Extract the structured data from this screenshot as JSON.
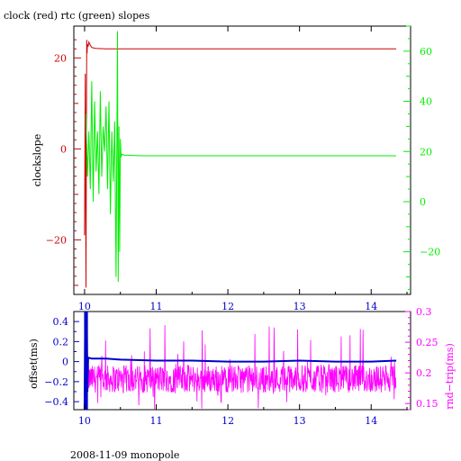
{
  "title": "clock (red) rtc (green) slopes",
  "footer": "2008-11-09 monopole",
  "colors": {
    "clock": "#cc0000",
    "rtc": "#00ee00",
    "offset": "#0000cc",
    "rndtrip": "#ff00ff",
    "axis_black": "#000000"
  },
  "chart_data": [
    {
      "type": "line",
      "title": "clock (red) rtc (green) slopes",
      "xlabel": "",
      "ylabel": "clockslope",
      "xlim": [
        9.85,
        14.55
      ],
      "x_ticks": [
        "10",
        "11",
        "12",
        "13",
        "14"
      ],
      "ylim_left": [
        -32,
        27
      ],
      "y_left_ticks": [
        "20",
        "0",
        "−20"
      ],
      "ylim_right": [
        -37,
        70
      ],
      "y_right_ticks": [
        "60",
        "40",
        "20",
        "0",
        "−20"
      ],
      "series": [
        {
          "name": "clock",
          "axis": "left",
          "x": [
            10.0,
            10.01,
            10.02,
            10.03,
            10.035,
            10.04,
            10.05,
            10.06,
            10.08,
            10.1,
            10.15,
            10.3,
            10.5,
            11.0,
            12.0,
            13.0,
            14.0,
            14.35
          ],
          "y": [
            -19.0,
            16.5,
            -30.5,
            24.0,
            21.0,
            23.0,
            22.5,
            23.5,
            22.8,
            22.3,
            22.1,
            22.0,
            22.0,
            22.0,
            22.0,
            22.0,
            22.0,
            22.0
          ]
        },
        {
          "name": "rtc",
          "axis": "right",
          "x": [
            10.02,
            10.04,
            10.06,
            10.08,
            10.1,
            10.12,
            10.14,
            10.16,
            10.18,
            10.2,
            10.22,
            10.24,
            10.26,
            10.28,
            10.3,
            10.32,
            10.34,
            10.36,
            10.38,
            10.4,
            10.42,
            10.44,
            10.46,
            10.47,
            10.48,
            10.49,
            10.5,
            10.51,
            10.53,
            10.55,
            10.6,
            10.8,
            11.0,
            12.0,
            13.0,
            14.0,
            14.35
          ],
          "y": [
            35.0,
            10.0,
            28.0,
            5.0,
            48.0,
            0.0,
            40.0,
            12.0,
            28.0,
            3.0,
            44.0,
            10.0,
            30.0,
            20.0,
            38.0,
            5.0,
            40.0,
            -5.0,
            28.0,
            8.0,
            32.0,
            -30.0,
            68.0,
            -32.0,
            30.0,
            -20.0,
            25.0,
            18.0,
            19.0,
            18.5,
            18.5,
            18.3,
            18.3,
            18.3,
            18.3,
            18.3,
            18.3
          ]
        }
      ]
    },
    {
      "type": "line",
      "title": "",
      "xlabel": "",
      "ylabel_left": "offset(ms)",
      "ylabel_right": "rnd−trip(ms)",
      "xlim": [
        9.85,
        14.55
      ],
      "x_ticks": [
        "10",
        "11",
        "12",
        "13",
        "14"
      ],
      "ylim_left": [
        -0.48,
        0.5
      ],
      "y_left_ticks": [
        "0.4",
        "0.2",
        "0",
        "−0.2",
        "−0.4"
      ],
      "ylim_right": [
        0.14,
        0.3
      ],
      "y_right_ticks": [
        "0.3",
        "0.25",
        "0.2",
        "0.15"
      ],
      "series": [
        {
          "name": "offset",
          "axis": "left",
          "x": [
            10.0,
            10.01,
            10.02,
            10.03,
            10.04,
            10.05,
            10.1,
            10.3,
            10.5,
            11.0,
            11.5,
            12.0,
            12.5,
            13.0,
            13.5,
            14.0,
            14.35
          ],
          "y": [
            -0.48,
            0.5,
            -0.48,
            0.5,
            -0.3,
            0.04,
            0.03,
            0.03,
            0.02,
            0.01,
            0.01,
            0.0,
            0.0,
            0.01,
            0.0,
            0.0,
            0.01
          ]
        },
        {
          "name": "rndtrip",
          "axis": "right",
          "x": [
            10.05,
            10.5,
            11.0,
            11.5,
            12.0,
            12.5,
            13.0,
            13.5,
            14.0,
            14.35
          ],
          "y": [
            0.19,
            0.19,
            0.19,
            0.19,
            0.19,
            0.19,
            0.19,
            0.19,
            0.19,
            0.19
          ]
        }
      ]
    }
  ]
}
